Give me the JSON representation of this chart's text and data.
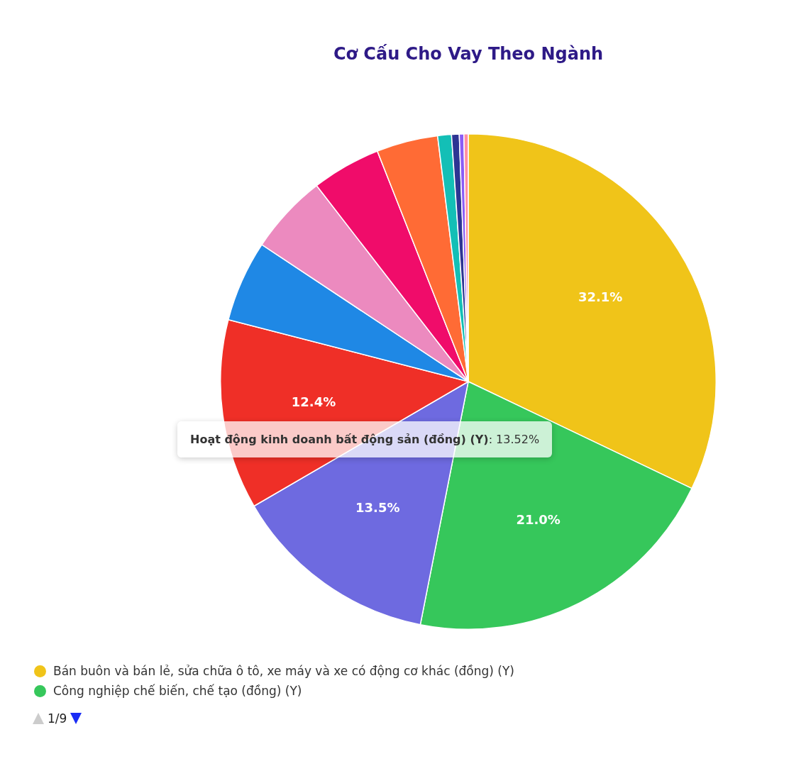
{
  "chart_data": {
    "type": "pie",
    "title": "Cơ Cấu Cho Vay Theo Ngành",
    "categories": [
      "Bán buôn và bán lẻ, sửa chữa ô tô, xe máy và xe có động cơ khác (đồng) (Y)",
      "Công nghiệp chế biến, chế tạo (đồng) (Y)",
      null,
      null,
      null,
      null,
      null,
      null,
      null,
      null,
      null,
      null
    ],
    "values": [
      32.1,
      21.0,
      13.52,
      12.4,
      5.3,
      5.2,
      4.5,
      4.0,
      0.9,
      0.5,
      0.3,
      0.28
    ],
    "colors": [
      "#f0c419",
      "#36c75b",
      "#6e6ae0",
      "#ef2f27",
      "#1f88e5",
      "#ec8abf",
      "#f00c6a",
      "#ff6b35",
      "#13bfb6",
      "#2d3593",
      "#8b5cf6",
      "#ff8fa3"
    ],
    "value_labels": [
      "32.1%",
      "21.0%",
      "13.5%",
      "12.4%",
      null,
      null,
      null,
      null,
      null,
      null,
      null,
      null
    ],
    "legend": "bottom",
    "annotations": [
      "Hoạt động kinh doanh bất động sản (đồng) (Y): 13.52%",
      "1/9"
    ]
  }
}
